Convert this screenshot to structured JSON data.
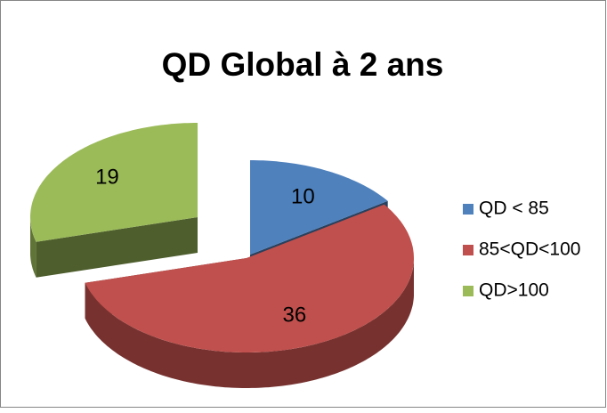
{
  "chart_data": {
    "type": "pie3d",
    "title": "QD Global à 2 ans",
    "categories": [
      "QD < 85",
      "85<QD<100",
      "QD>100"
    ],
    "values": [
      10,
      36,
      19
    ],
    "colors": [
      "#4f81bd",
      "#c0504d",
      "#9bbb59"
    ],
    "legend": "right"
  }
}
